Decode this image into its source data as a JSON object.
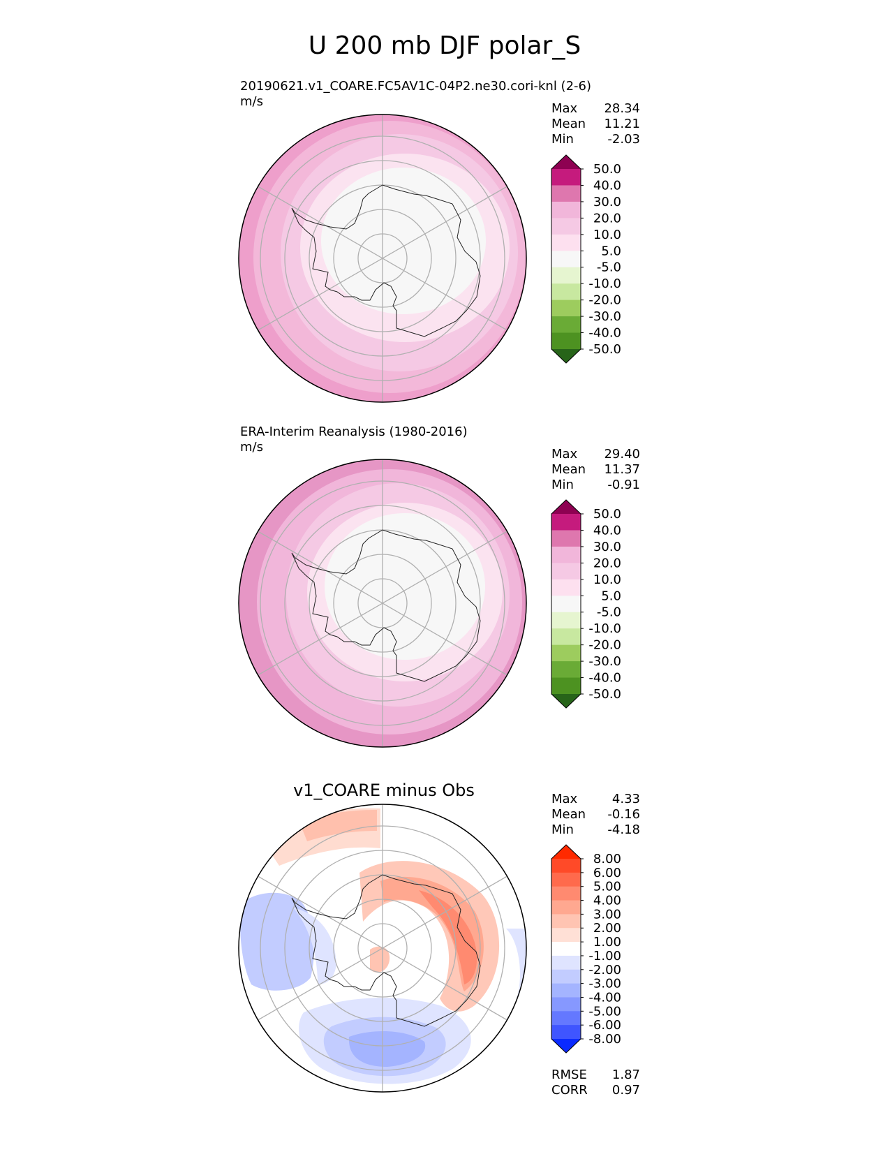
{
  "figure": {
    "title": "U 200 mb DJF polar_S"
  },
  "colors": {
    "land_outline": "#000000",
    "grid": "#b0b0b0",
    "polar_fill": "#f7f7f7"
  },
  "chart_data": [
    {
      "type": "heatmap",
      "projection": "south-polar-stereographic",
      "title": "20190621.v1_COARE.FC5AV1C-04P2.ne30.cori-knl (2-6)",
      "units": "m/s",
      "stats": [
        {
          "label": "Max",
          "value": "28.34"
        },
        {
          "label": "Mean",
          "value": "11.21"
        },
        {
          "label": "Min",
          "value": "-2.03"
        }
      ],
      "colorbar": {
        "levels": [
          "50.0",
          "40.0",
          "30.0",
          "20.0",
          "10.0",
          "5.0",
          "-5.0",
          "-10.0",
          "-20.0",
          "-30.0",
          "-40.0",
          "-50.0"
        ],
        "colors": [
          "#8e0152",
          "#c51b7d",
          "#de77ae",
          "#f1b6da",
          "#f5c9e4",
          "#fde0ef",
          "#f7f7f7",
          "#e6f5d0",
          "#c8e8a0",
          "#9dcc5e",
          "#6aab36",
          "#4d9221",
          "#276419"
        ],
        "extend": "both"
      },
      "latitude_bands": [
        {
          "from_lat": -50,
          "to_lat": -50,
          "color": "#f5c9e4"
        },
        {
          "from_lat": -60,
          "to_lat": -60,
          "color": "#fde0ef"
        },
        {
          "from_lat": -70,
          "to_lat": -70,
          "color": "#f7f7f7"
        }
      ]
    },
    {
      "type": "heatmap",
      "projection": "south-polar-stereographic",
      "title": "ERA-Interim Reanalysis (1980-2016)",
      "units": "m/s",
      "stats": [
        {
          "label": "Max",
          "value": "29.40"
        },
        {
          "label": "Mean",
          "value": "11.37"
        },
        {
          "label": "Min",
          "value": "-0.91"
        }
      ],
      "colorbar": {
        "levels": [
          "50.0",
          "40.0",
          "30.0",
          "20.0",
          "10.0",
          "5.0",
          "-5.0",
          "-10.0",
          "-20.0",
          "-30.0",
          "-40.0",
          "-50.0"
        ],
        "colors": [
          "#8e0152",
          "#c51b7d",
          "#de77ae",
          "#f1b6da",
          "#f5c9e4",
          "#fde0ef",
          "#f7f7f7",
          "#e6f5d0",
          "#c8e8a0",
          "#9dcc5e",
          "#6aab36",
          "#4d9221",
          "#276419"
        ],
        "extend": "both"
      }
    },
    {
      "type": "heatmap",
      "projection": "south-polar-stereographic",
      "title": "v1_COARE minus Obs",
      "stats": [
        {
          "label": "Max",
          "value": "4.33"
        },
        {
          "label": "Mean",
          "value": "-0.16"
        },
        {
          "label": "Min",
          "value": "-4.18"
        }
      ],
      "colorbar": {
        "levels": [
          "8.00",
          "6.00",
          "5.00",
          "4.00",
          "3.00",
          "2.00",
          "1.00",
          "-1.00",
          "-2.00",
          "-3.00",
          "-4.00",
          "-5.00",
          "-6.00",
          "-8.00"
        ],
        "colors": [
          "#ff2a00",
          "#ff4a28",
          "#ff6a4c",
          "#ff8a70",
          "#ffa890",
          "#ffc4b2",
          "#ffe0d6",
          "#ffffff",
          "#dfe4ff",
          "#c2ccff",
          "#a4b4ff",
          "#8698ff",
          "#6478ff",
          "#3f55ff",
          "#0a2aff"
        ],
        "extend": "both"
      },
      "metrics": [
        {
          "label": "RMSE",
          "value": "1.87"
        },
        {
          "label": "CORR",
          "value": "0.97"
        }
      ]
    }
  ]
}
